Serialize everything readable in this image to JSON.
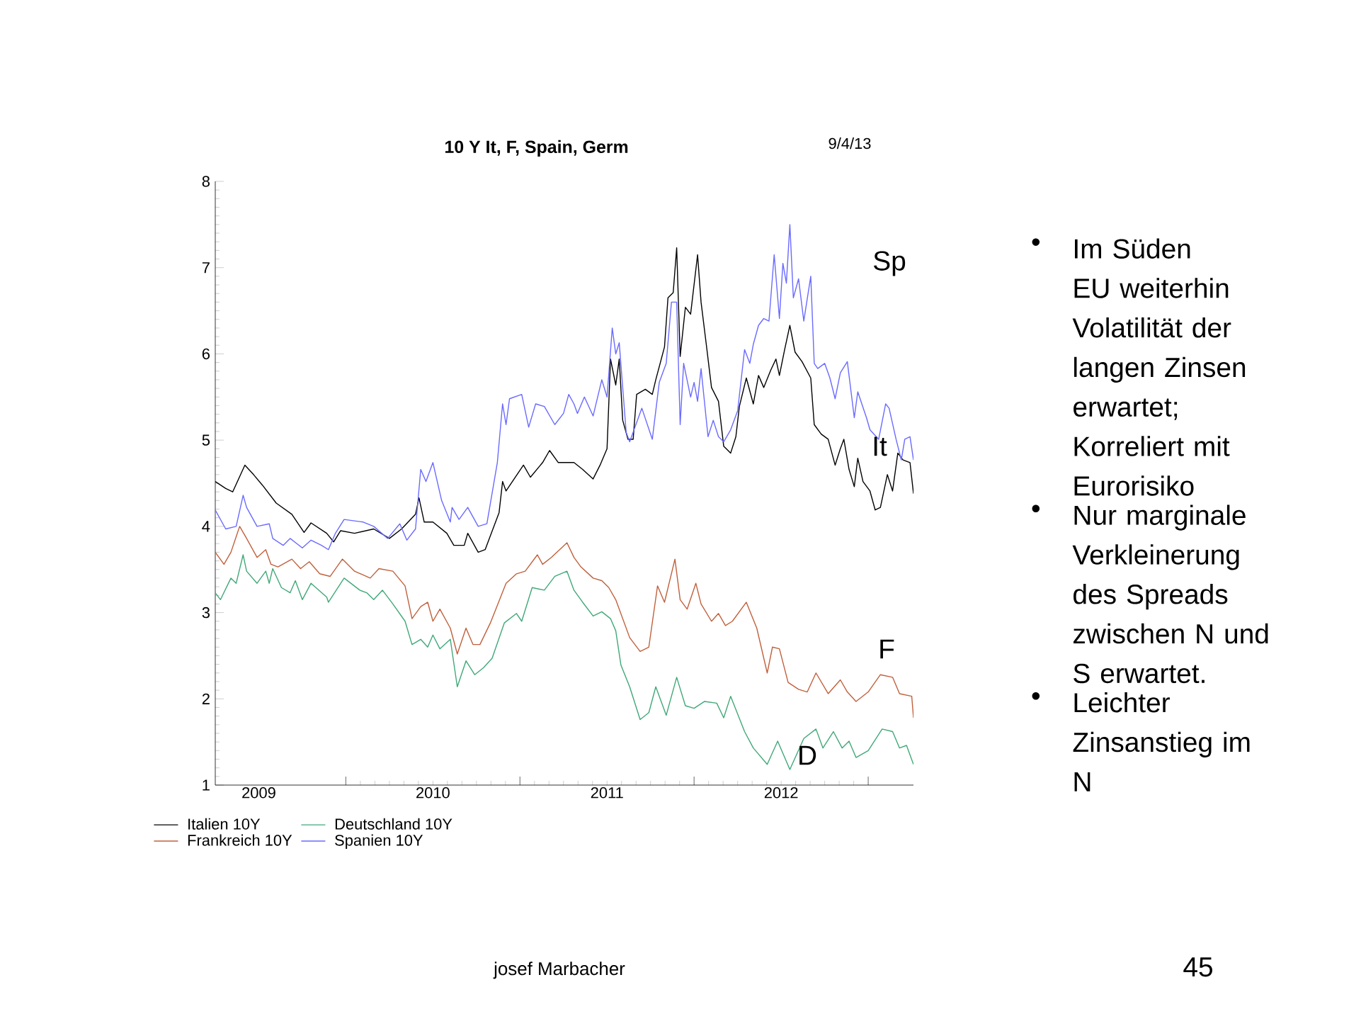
{
  "chart_data": {
    "type": "line",
    "title": "10 Y It, F, Spain,  Germ",
    "xlim": [
      2009.25,
      2013.26
    ],
    "ylim": [
      1,
      8
    ],
    "xticks": [
      {
        "value": 2010,
        "label": null
      },
      {
        "value": 2011,
        "label": null
      },
      {
        "value": 2012,
        "label": null
      },
      {
        "value": 2013,
        "label": null
      },
      {
        "value": 2009.5,
        "label": "2009"
      },
      {
        "value": 2010.5,
        "label": "2010"
      },
      {
        "value": 2011.5,
        "label": "2011"
      },
      {
        "value": 2012.5,
        "label": "2012"
      }
    ],
    "yticks": [
      1,
      2,
      3,
      4,
      5,
      6,
      7,
      8
    ],
    "legend": "bottom",
    "series": [
      {
        "name": "Italien 10Y",
        "color": "#000000",
        "x": [
          2009.25,
          2009.31,
          2009.35,
          2009.42,
          2009.47,
          2009.52,
          2009.6,
          2009.69,
          2009.76,
          2009.8,
          2009.89,
          2009.93,
          2009.97,
          2010.05,
          2010.16,
          2010.25,
          2010.32,
          2010.4,
          2010.42,
          2010.45,
          2010.5,
          2010.58,
          2010.62,
          2010.68,
          2010.7,
          2010.76,
          2010.8,
          2010.88,
          2010.9,
          2010.92,
          2011.02,
          2011.06,
          2011.13,
          2011.17,
          2011.22,
          2011.28,
          2011.31,
          2011.36,
          2011.42,
          2011.46,
          2011.5,
          2011.52,
          2011.55,
          2011.57,
          2011.59,
          2011.62,
          2011.65,
          2011.67,
          2011.72,
          2011.76,
          2011.78,
          2011.83,
          2011.85,
          2011.88,
          2011.9,
          2011.92,
          2011.95,
          2011.98,
          2012.02,
          2012.04,
          2012.07,
          2012.1,
          2012.14,
          2012.17,
          2012.21,
          2012.24,
          2012.26,
          2012.3,
          2012.34,
          2012.37,
          2012.4,
          2012.44,
          2012.47,
          2012.49,
          2012.52,
          2012.55,
          2012.58,
          2012.62,
          2012.67,
          2012.69,
          2012.73,
          2012.77,
          2012.81,
          2012.84,
          2012.86,
          2012.89,
          2012.92,
          2012.94,
          2012.97,
          2013.01,
          2013.04,
          2013.07,
          2013.11,
          2013.14,
          2013.17,
          2013.2,
          2013.24,
          2013.26
        ],
        "values": [
          4.52,
          4.44,
          4.4,
          4.71,
          4.6,
          4.48,
          4.27,
          4.14,
          3.93,
          4.04,
          3.92,
          3.82,
          3.95,
          3.92,
          3.97,
          3.86,
          3.97,
          4.14,
          4.33,
          4.05,
          4.05,
          3.92,
          3.78,
          3.78,
          3.92,
          3.7,
          3.73,
          4.16,
          4.52,
          4.41,
          4.71,
          4.57,
          4.74,
          4.88,
          4.74,
          4.74,
          4.74,
          4.66,
          4.55,
          4.71,
          4.9,
          5.94,
          5.64,
          5.94,
          5.23,
          5.01,
          5.01,
          5.53,
          5.59,
          5.53,
          5.7,
          6.08,
          6.65,
          6.71,
          7.23,
          5.97,
          6.54,
          6.46,
          7.15,
          6.6,
          6.11,
          5.61,
          5.45,
          4.93,
          4.85,
          5.04,
          5.39,
          5.72,
          5.42,
          5.75,
          5.61,
          5.81,
          5.94,
          5.75,
          6.05,
          6.33,
          6.02,
          5.91,
          5.72,
          5.18,
          5.07,
          5.01,
          4.71,
          4.9,
          5.01,
          4.66,
          4.46,
          4.79,
          4.52,
          4.41,
          4.19,
          4.22,
          4.6,
          4.41,
          4.85,
          4.77,
          4.74,
          4.38
        ]
      },
      {
        "name": "Frankreich 10Y",
        "color": "#c0603c",
        "x": [
          2009.25,
          2009.3,
          2009.34,
          2009.39,
          2009.43,
          2009.49,
          2009.54,
          2009.57,
          2009.61,
          2009.69,
          2009.74,
          2009.79,
          2009.85,
          2009.91,
          2009.98,
          2010.05,
          2010.14,
          2010.19,
          2010.27,
          2010.34,
          2010.38,
          2010.43,
          2010.47,
          2010.5,
          2010.54,
          2010.6,
          2010.64,
          2010.69,
          2010.73,
          2010.77,
          2010.83,
          2010.92,
          2010.98,
          2011.03,
          2011.1,
          2011.13,
          2011.18,
          2011.27,
          2011.31,
          2011.35,
          2011.42,
          2011.47,
          2011.51,
          2011.55,
          2011.63,
          2011.69,
          2011.74,
          2011.79,
          2011.83,
          2011.89,
          2011.92,
          2011.96,
          2012.01,
          2012.04,
          2012.1,
          2012.14,
          2012.18,
          2012.22,
          2012.3,
          2012.36,
          2012.42,
          2012.45,
          2012.49,
          2012.54,
          2012.6,
          2012.65,
          2012.7,
          2012.77,
          2012.84,
          2012.88,
          2012.93,
          2013.0,
          2013.07,
          2013.14,
          2013.18,
          2013.25,
          2013.26
        ],
        "values": [
          3.7,
          3.56,
          3.7,
          4.0,
          3.86,
          3.64,
          3.73,
          3.56,
          3.53,
          3.62,
          3.51,
          3.59,
          3.45,
          3.42,
          3.62,
          3.48,
          3.4,
          3.51,
          3.48,
          3.31,
          2.93,
          3.07,
          3.12,
          2.9,
          3.04,
          2.82,
          2.52,
          2.82,
          2.63,
          2.63,
          2.88,
          3.34,
          3.45,
          3.48,
          3.67,
          3.56,
          3.64,
          3.81,
          3.64,
          3.53,
          3.4,
          3.37,
          3.29,
          3.15,
          2.71,
          2.55,
          2.6,
          3.31,
          3.12,
          3.62,
          3.15,
          3.04,
          3.34,
          3.1,
          2.9,
          2.99,
          2.85,
          2.9,
          3.12,
          2.82,
          2.3,
          2.6,
          2.58,
          2.19,
          2.11,
          2.08,
          2.3,
          2.06,
          2.22,
          2.08,
          1.97,
          2.08,
          2.28,
          2.25,
          2.06,
          2.03,
          1.78
        ]
      },
      {
        "name": "Spanien 10Y",
        "color": "#6a6aff",
        "x": [
          2009.25,
          2009.31,
          2009.37,
          2009.41,
          2009.43,
          2009.49,
          2009.56,
          2009.58,
          2009.64,
          2009.68,
          2009.75,
          2009.8,
          2009.86,
          2009.9,
          2009.94,
          2009.99,
          2010.1,
          2010.16,
          2010.24,
          2010.31,
          2010.35,
          2010.4,
          2010.43,
          2010.46,
          2010.5,
          2010.55,
          2010.6,
          2010.61,
          2010.65,
          2010.7,
          2010.76,
          2010.81,
          2010.87,
          2010.9,
          2010.92,
          2010.94,
          2011.01,
          2011.05,
          2011.09,
          2011.14,
          2011.2,
          2011.25,
          2011.28,
          2011.31,
          2011.33,
          2011.37,
          2011.42,
          2011.47,
          2011.5,
          2011.53,
          2011.55,
          2011.57,
          2011.61,
          2011.63,
          2011.7,
          2011.76,
          2011.8,
          2011.84,
          2011.87,
          2011.9,
          2011.92,
          2011.94,
          2011.98,
          2012.0,
          2012.02,
          2012.04,
          2012.08,
          2012.11,
          2012.14,
          2012.17,
          2012.21,
          2012.25,
          2012.29,
          2012.32,
          2012.34,
          2012.37,
          2012.4,
          2012.43,
          2012.46,
          2012.49,
          2012.51,
          2012.53,
          2012.55,
          2012.57,
          2012.6,
          2012.63,
          2012.67,
          2012.69,
          2012.71,
          2012.75,
          2012.78,
          2012.81,
          2012.84,
          2012.88,
          2012.92,
          2012.94,
          2012.99,
          2013.01,
          2013.06,
          2013.1,
          2013.12,
          2013.16,
          2013.19,
          2013.21,
          2013.24,
          2013.26
        ],
        "values": [
          4.19,
          3.97,
          4.0,
          4.36,
          4.22,
          4.0,
          4.03,
          3.86,
          3.78,
          3.86,
          3.75,
          3.84,
          3.78,
          3.73,
          3.92,
          4.08,
          4.05,
          4.0,
          3.86,
          4.03,
          3.84,
          3.97,
          4.66,
          4.52,
          4.74,
          4.3,
          4.05,
          4.22,
          4.08,
          4.22,
          4.0,
          4.03,
          4.74,
          5.42,
          5.18,
          5.48,
          5.53,
          5.15,
          5.42,
          5.39,
          5.18,
          5.31,
          5.53,
          5.42,
          5.31,
          5.5,
          5.28,
          5.7,
          5.5,
          6.3,
          6.0,
          6.13,
          5.09,
          4.98,
          5.37,
          5.01,
          5.67,
          5.89,
          6.6,
          6.6,
          5.18,
          5.89,
          5.5,
          5.67,
          5.45,
          5.83,
          5.04,
          5.23,
          5.04,
          4.98,
          5.12,
          5.34,
          6.05,
          5.89,
          6.11,
          6.33,
          6.41,
          6.38,
          7.15,
          6.41,
          7.05,
          6.82,
          7.5,
          6.65,
          6.87,
          6.38,
          6.9,
          5.89,
          5.83,
          5.89,
          5.72,
          5.48,
          5.78,
          5.91,
          5.26,
          5.56,
          5.26,
          5.12,
          5.01,
          5.42,
          5.37,
          5.01,
          4.77,
          5.01,
          5.04,
          4.77
        ]
      },
      {
        "name": "Deutschland 10Y",
        "color": "#40a878",
        "x": [
          2009.25,
          2009.28,
          2009.34,
          2009.37,
          2009.41,
          2009.43,
          2009.49,
          2009.54,
          2009.56,
          2009.58,
          2009.63,
          2009.68,
          2009.71,
          2009.75,
          2009.8,
          2009.89,
          2009.9,
          2009.99,
          2010.08,
          2010.12,
          2010.16,
          2010.21,
          2010.27,
          2010.34,
          2010.38,
          2010.43,
          2010.47,
          2010.5,
          2010.54,
          2010.6,
          2010.64,
          2010.69,
          2010.74,
          2010.79,
          2010.84,
          2010.91,
          2010.98,
          2011.01,
          2011.07,
          2011.14,
          2011.2,
          2011.27,
          2011.31,
          2011.36,
          2011.42,
          2011.47,
          2011.52,
          2011.55,
          2011.58,
          2011.63,
          2011.69,
          2011.74,
          2011.78,
          2011.84,
          2011.9,
          2011.95,
          2012.0,
          2012.06,
          2012.13,
          2012.17,
          2012.21,
          2012.29,
          2012.34,
          2012.42,
          2012.48,
          2012.55,
          2012.63,
          2012.7,
          2012.74,
          2012.8,
          2012.85,
          2012.89,
          2012.93,
          2013.0,
          2013.08,
          2013.14,
          2013.18,
          2013.22,
          2013.26
        ],
        "values": [
          3.23,
          3.15,
          3.4,
          3.34,
          3.67,
          3.48,
          3.34,
          3.48,
          3.34,
          3.51,
          3.29,
          3.23,
          3.37,
          3.15,
          3.34,
          3.18,
          3.12,
          3.4,
          3.26,
          3.23,
          3.15,
          3.26,
          3.1,
          2.9,
          2.63,
          2.69,
          2.6,
          2.74,
          2.58,
          2.69,
          2.14,
          2.44,
          2.28,
          2.36,
          2.47,
          2.88,
          2.99,
          2.9,
          3.29,
          3.26,
          3.42,
          3.48,
          3.26,
          3.12,
          2.96,
          3.01,
          2.93,
          2.79,
          2.39,
          2.14,
          1.76,
          1.84,
          2.14,
          1.81,
          2.25,
          1.92,
          1.89,
          1.97,
          1.95,
          1.78,
          2.03,
          1.62,
          1.43,
          1.24,
          1.51,
          1.18,
          1.54,
          1.65,
          1.43,
          1.62,
          1.43,
          1.51,
          1.32,
          1.4,
          1.65,
          1.62,
          1.43,
          1.46,
          1.24
        ]
      }
    ],
    "annotations": [
      "9/4/13",
      "Im Süden EU weiterhin Volatilität der langen Zinsen erwartet; Korreliert mit Eurorisiko",
      "Nur marginale Verkleinerung des Spreads zwischen N und S erwartet.",
      "Leichter Zinsanstieg im N",
      "josef Marbacher",
      "45",
      "Sp",
      "It",
      "F",
      "D",
      "•",
      "•",
      "•"
    ]
  }
}
